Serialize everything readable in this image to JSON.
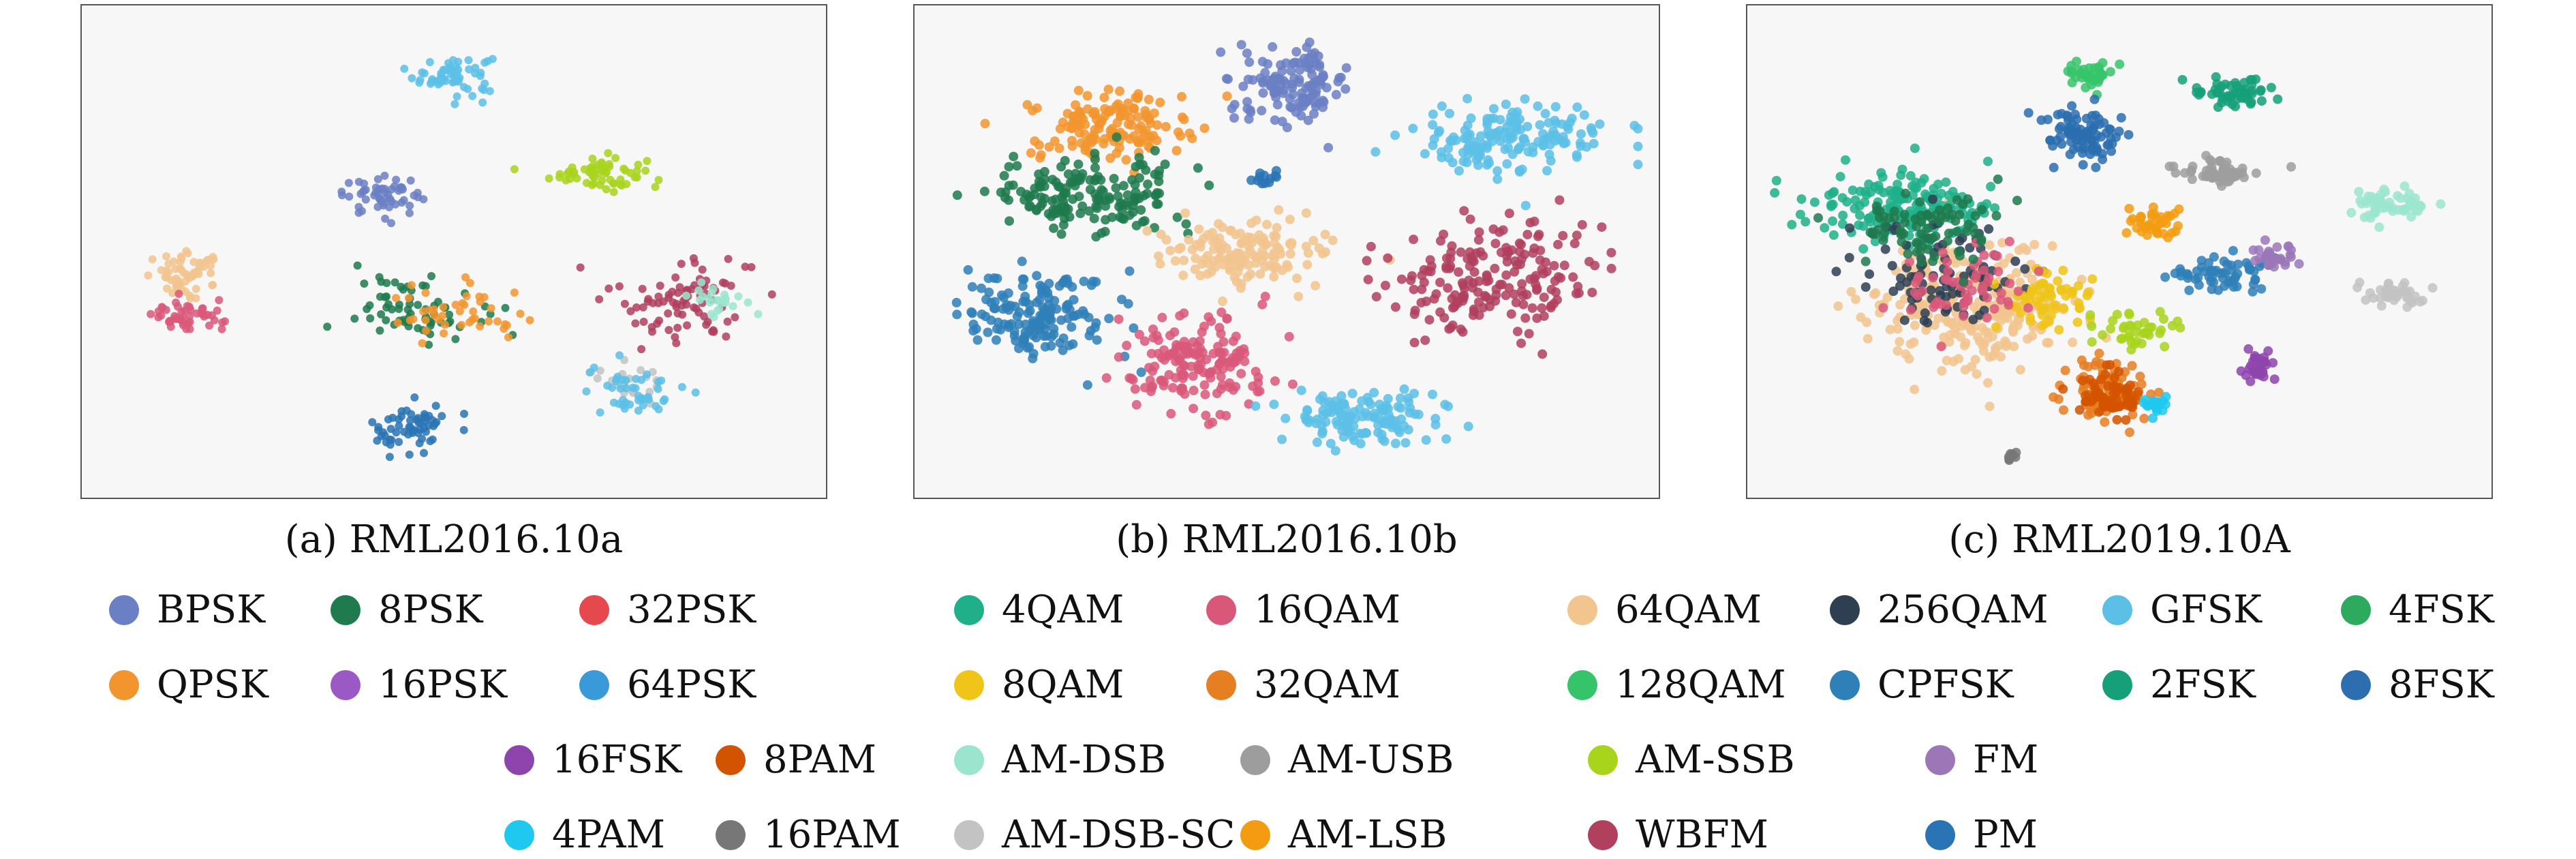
{
  "captions": {
    "a": "(a) RML2016.10a",
    "b": "(b) RML2016.10b",
    "c": "(c) RML2019.10A"
  },
  "legend": [
    {
      "label": "BPSK",
      "color": "#6b7fc4"
    },
    {
      "label": "8PSK",
      "color": "#1f7a4e"
    },
    {
      "label": "32PSK",
      "color": "#e5484d"
    },
    {
      "label": "4QAM",
      "color": "#1fb08a"
    },
    {
      "label": "16QAM",
      "color": "#d9587a"
    },
    {
      "label": "64QAM",
      "color": "#f2c48e"
    },
    {
      "label": "256QAM",
      "color": "#2e3f52"
    },
    {
      "label": "GFSK",
      "color": "#5cc0e6"
    },
    {
      "label": "4FSK",
      "color": "#2eaa5e"
    },
    {
      "label": "QPSK",
      "color": "#f2952e"
    },
    {
      "label": "16PSK",
      "color": "#9b59c6"
    },
    {
      "label": "64PSK",
      "color": "#3a9ad9"
    },
    {
      "label": "8QAM",
      "color": "#f0c419"
    },
    {
      "label": "32QAM",
      "color": "#e67e22"
    },
    {
      "label": "128QAM",
      "color": "#36c46a"
    },
    {
      "label": "CPFSK",
      "color": "#2f7fb8"
    },
    {
      "label": "2FSK",
      "color": "#16a07a"
    },
    {
      "label": "8FSK",
      "color": "#2c6eb0"
    },
    {
      "label": "16FSK",
      "color": "#8e44ad"
    },
    {
      "label": "8PAM",
      "color": "#d35400"
    },
    {
      "label": "AM-DSB",
      "color": "#9be5cf"
    },
    {
      "label": "AM-USB",
      "color": "#9d9d9d"
    },
    {
      "label": "AM-SSB",
      "color": "#a8d41c"
    },
    {
      "label": "FM",
      "color": "#9b77b8"
    },
    {
      "label": "4PAM",
      "color": "#1ec8ef"
    },
    {
      "label": "16PAM",
      "color": "#777777"
    },
    {
      "label": "AM-DSB-SC",
      "color": "#c3c3c3"
    },
    {
      "label": "AM-LSB",
      "color": "#f39c12"
    },
    {
      "label": "WBFM",
      "color": "#b0405e"
    },
    {
      "label": "PM",
      "color": "#2a74b5"
    }
  ],
  "chart_data": [
    {
      "type": "scatter",
      "title": "(a) RML2016.10a",
      "xlabel": "",
      "ylabel": "",
      "axes": "hidden",
      "grid": false,
      "xlim": [
        0,
        100
      ],
      "ylim": [
        0,
        100
      ],
      "clusters": [
        {
          "label": "GFSK",
          "center": [
            50,
            88
          ],
          "spread": [
            5,
            4
          ],
          "points": 60
        },
        {
          "label": "AM-SSB",
          "center": [
            70,
            67
          ],
          "spread": [
            6,
            3.5
          ],
          "points": 60
        },
        {
          "label": "BPSK",
          "center": [
            40,
            62
          ],
          "spread": [
            5,
            3.5
          ],
          "points": 55
        },
        {
          "label": "64QAM",
          "center": [
            13,
            45
          ],
          "spread": [
            5,
            4
          ],
          "points": 60
        },
        {
          "label": "16QAM",
          "center": [
            13,
            36
          ],
          "spread": [
            4.5,
            3
          ],
          "points": 50
        },
        {
          "label": "8PSK",
          "center": [
            45,
            38
          ],
          "spread": [
            8,
            6
          ],
          "points": 70
        },
        {
          "label": "QPSK",
          "center": [
            50,
            36
          ],
          "spread": [
            9,
            6
          ],
          "points": 45
        },
        {
          "label": "PM",
          "center": [
            44,
            12
          ],
          "spread": [
            5,
            5
          ],
          "points": 60
        },
        {
          "label": "WBFM",
          "center": [
            82,
            40
          ],
          "spread": [
            9,
            9
          ],
          "points": 85
        },
        {
          "label": "AM-DSB",
          "center": [
            86,
            40
          ],
          "spread": [
            4,
            3
          ],
          "points": 25
        },
        {
          "label": "AM-DSB-SC",
          "center": [
            75,
            22
          ],
          "spread": [
            5,
            4
          ],
          "points": 20
        },
        {
          "label": "GFSK",
          "center": [
            75,
            20
          ],
          "spread": [
            6,
            5
          ],
          "points": 45
        }
      ]
    },
    {
      "type": "scatter",
      "title": "(b) RML2016.10b",
      "xlabel": "",
      "ylabel": "",
      "axes": "hidden",
      "grid": false,
      "xlim": [
        0,
        100
      ],
      "ylim": [
        0,
        100
      ],
      "clusters": [
        {
          "label": "BPSK",
          "center": [
            51,
            86
          ],
          "spread": [
            7,
            7
          ],
          "points": 130
        },
        {
          "label": "QPSK",
          "center": [
            25,
            77
          ],
          "spread": [
            10,
            7
          ],
          "points": 150
        },
        {
          "label": "8PSK",
          "center": [
            22,
            62
          ],
          "spread": [
            13,
            7
          ],
          "points": 170
        },
        {
          "label": "GFSK",
          "center": [
            81,
            74
          ],
          "spread": [
            12,
            7
          ],
          "points": 160
        },
        {
          "label": "64QAM",
          "center": [
            44,
            50
          ],
          "spread": [
            10,
            6
          ],
          "points": 140
        },
        {
          "label": "WBFM",
          "center": [
            79,
            45
          ],
          "spread": [
            13,
            11
          ],
          "points": 190
        },
        {
          "label": "CPFSK",
          "center": [
            16,
            36
          ],
          "spread": [
            10,
            9
          ],
          "points": 160
        },
        {
          "label": "16QAM",
          "center": [
            37,
            26
          ],
          "spread": [
            9,
            10
          ],
          "points": 160
        },
        {
          "label": "GFSK",
          "center": [
            60,
            14
          ],
          "spread": [
            10,
            6
          ],
          "points": 130
        },
        {
          "label": "PM",
          "center": [
            47,
            66
          ],
          "spread": [
            2,
            1.5
          ],
          "points": 12
        }
      ]
    },
    {
      "type": "scatter",
      "title": "(c) RML2019.10A",
      "xlabel": "",
      "ylabel": "",
      "axes": "hidden",
      "grid": false,
      "xlim": [
        0,
        100
      ],
      "ylim": [
        0,
        100
      ],
      "clusters": [
        {
          "label": "64QAM",
          "center": [
            30,
            38
          ],
          "spread": [
            13,
            12
          ],
          "points": 260
        },
        {
          "label": "4QAM",
          "center": [
            20,
            60
          ],
          "spread": [
            12,
            7
          ],
          "points": 160
        },
        {
          "label": "256QAM",
          "center": [
            25,
            45
          ],
          "spread": [
            9,
            9
          ],
          "points": 90
        },
        {
          "label": "8QAM",
          "center": [
            40,
            40
          ],
          "spread": [
            6,
            6
          ],
          "points": 60
        },
        {
          "label": "16QAM",
          "center": [
            28,
            42
          ],
          "spread": [
            8,
            8
          ],
          "points": 60
        },
        {
          "label": "8PSK",
          "center": [
            22,
            55
          ],
          "spread": [
            9,
            7
          ],
          "points": 80
        },
        {
          "label": "32QAM",
          "center": [
            48,
            20
          ],
          "spread": [
            5,
            6
          ],
          "points": 80
        },
        {
          "label": "128QAM",
          "center": [
            46,
            88
          ],
          "spread": [
            3,
            3
          ],
          "points": 40
        },
        {
          "label": "8FSK",
          "center": [
            45,
            75
          ],
          "spread": [
            5,
            5
          ],
          "points": 90
        },
        {
          "label": "2FSK",
          "center": [
            66,
            84
          ],
          "spread": [
            5,
            2.5
          ],
          "points": 60
        },
        {
          "label": "AM-USB",
          "center": [
            63,
            67
          ],
          "spread": [
            6,
            3
          ],
          "points": 60
        },
        {
          "label": "AM-DSB",
          "center": [
            88,
            60
          ],
          "spread": [
            5,
            3
          ],
          "points": 50
        },
        {
          "label": "AM-LSB",
          "center": [
            55,
            56
          ],
          "spread": [
            4,
            3
          ],
          "points": 40
        },
        {
          "label": "CPFSK",
          "center": [
            64,
            45
          ],
          "spread": [
            6,
            4
          ],
          "points": 60
        },
        {
          "label": "FM",
          "center": [
            72,
            49
          ],
          "spread": [
            2.5,
            3
          ],
          "points": 30
        },
        {
          "label": "AM-DSB-SC",
          "center": [
            88,
            41
          ],
          "spread": [
            4,
            3
          ],
          "points": 40
        },
        {
          "label": "AM-SSB",
          "center": [
            52,
            33
          ],
          "spread": [
            5,
            3
          ],
          "points": 40
        },
        {
          "label": "8PAM",
          "center": [
            49,
            19
          ],
          "spread": [
            4,
            5
          ],
          "points": 70
        },
        {
          "label": "4PAM",
          "center": [
            55,
            17
          ],
          "spread": [
            2,
            2
          ],
          "points": 20
        },
        {
          "label": "16FSK",
          "center": [
            69,
            25
          ],
          "spread": [
            2,
            3
          ],
          "points": 30
        },
        {
          "label": "16PAM",
          "center": [
            35,
            6
          ],
          "spread": [
            1,
            1
          ],
          "points": 10
        }
      ]
    }
  ]
}
